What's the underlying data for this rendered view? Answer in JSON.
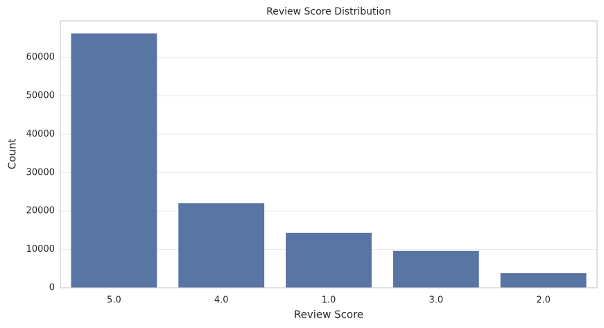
{
  "chart_data": {
    "type": "bar",
    "title": "Review Score Distribution",
    "x_label": "Review Score",
    "y_label": "Count",
    "categories": [
      "5.0",
      "4.0",
      "1.0",
      "3.0",
      "2.0"
    ],
    "values": [
      66200,
      22000,
      14300,
      9600,
      3800
    ],
    "color": "#5975a4",
    "ylim": [
      0,
      69500
    ],
    "yticks": [
      0,
      10000,
      20000,
      30000,
      40000,
      50000,
      60000
    ],
    "grid": true
  }
}
